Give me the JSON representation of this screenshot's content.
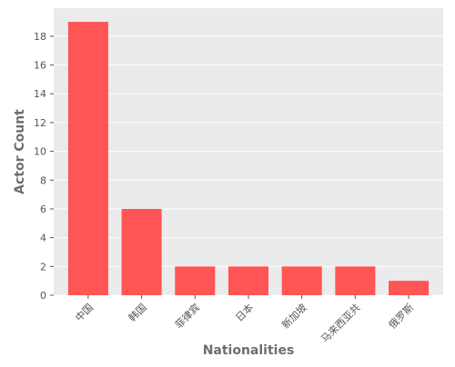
{
  "chart_data": {
    "type": "bar",
    "title": "",
    "xlabel": "Nationalities",
    "ylabel": "Actor Count",
    "categories": [
      "中国",
      "韩国",
      "菲律宾",
      "日本",
      "新加坡",
      "马来西亚共",
      "俄罗斯"
    ],
    "values": [
      19,
      6,
      2,
      2,
      2,
      2,
      1
    ],
    "ylim": [
      0,
      19.95
    ],
    "yticks": [
      0,
      2,
      4,
      6,
      8,
      10,
      12,
      14,
      16,
      18
    ],
    "grid": true,
    "bar_color": "#ff5555",
    "background_color": "#ebebeb"
  }
}
